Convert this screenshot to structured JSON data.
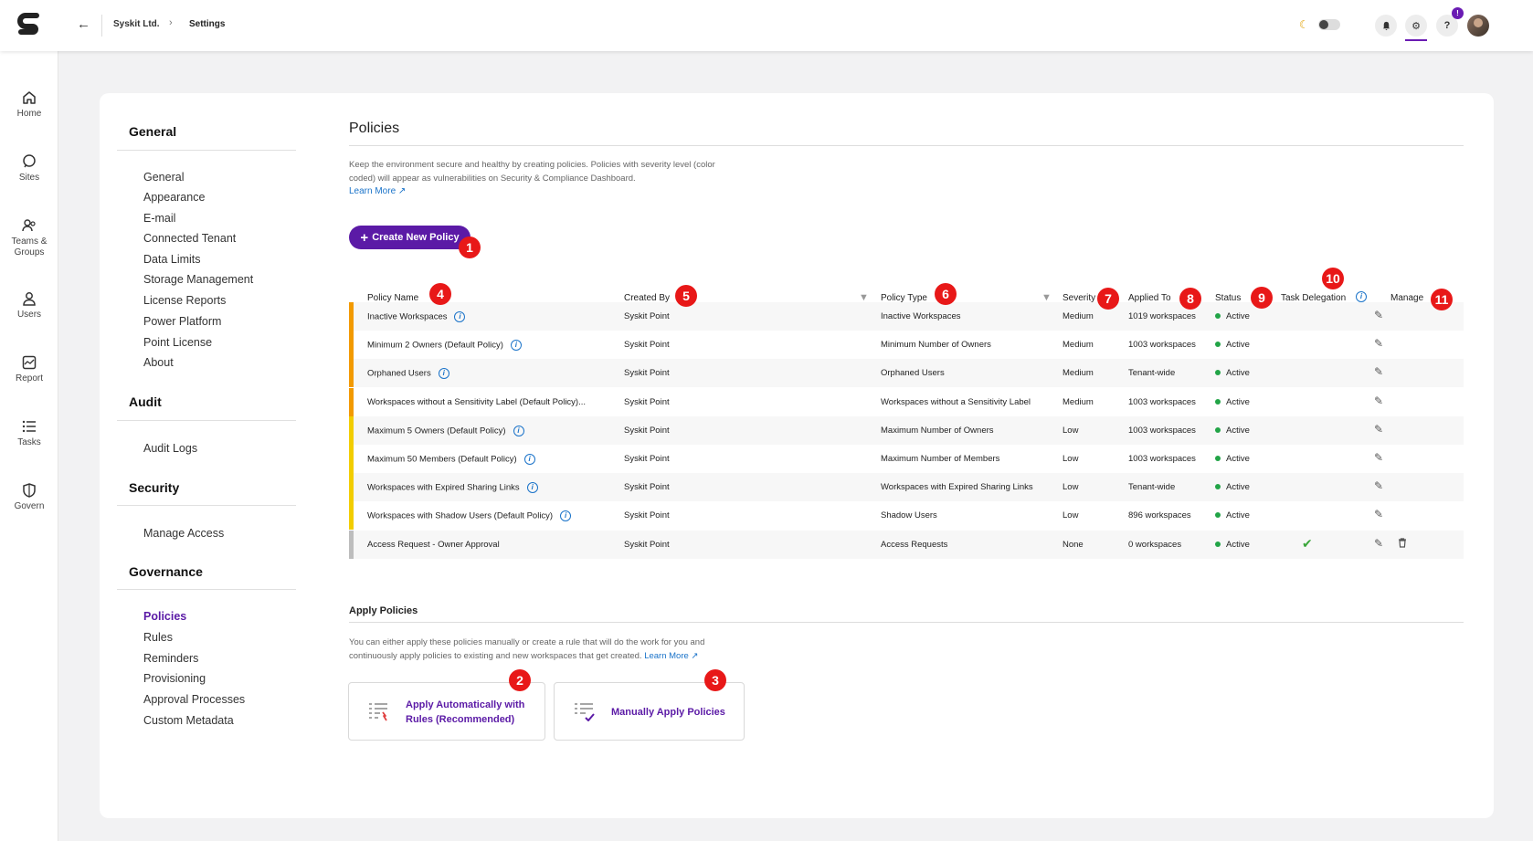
{
  "topbar": {
    "breadcrumb": [
      "Syskit Ltd.",
      "Settings"
    ],
    "notification_count": "!",
    "help_label": "?"
  },
  "rail": [
    {
      "label": "Home",
      "icon": "home-icon"
    },
    {
      "label": "Sites",
      "icon": "sites-icon"
    },
    {
      "label": "Teams & Groups",
      "icon": "teams-groups-icon"
    },
    {
      "label": "Users",
      "icon": "users-icon"
    },
    {
      "label": "Report",
      "icon": "report-icon"
    },
    {
      "label": "Tasks",
      "icon": "tasks-icon"
    },
    {
      "label": "Govern",
      "icon": "govern-icon"
    }
  ],
  "settings_nav": {
    "sections": [
      {
        "title": "General",
        "items": [
          "General",
          "Appearance",
          "E-mail",
          "Connected Tenant",
          "Data Limits",
          "Storage Management",
          "License Reports",
          "Power Platform",
          "Point License",
          "About"
        ]
      },
      {
        "title": "Audit",
        "items": [
          "Audit Logs"
        ]
      },
      {
        "title": "Security",
        "items": [
          "Manage Access"
        ]
      },
      {
        "title": "Governance",
        "items": [
          "Policies",
          "Rules",
          "Reminders",
          "Provisioning",
          "Approval Processes",
          "Custom Metadata"
        ]
      }
    ],
    "active_item": "Policies"
  },
  "policies": {
    "title": "Policies",
    "description": "Keep the environment secure and healthy by creating policies. Policies with severity level (color coded) will appear as vulnerabilities on Security & Compliance Dashboard.",
    "learn_more": "Learn More",
    "create_button": "Create New Policy",
    "columns": [
      "Policy Name",
      "Created By",
      "Policy Type",
      "Severity",
      "Applied To",
      "Status",
      "Task Delegation",
      "Manage"
    ],
    "severity_colors": {
      "Medium": "#f29a00",
      "Low": "#f2cd00",
      "None": "#bdbdbd"
    },
    "rows": [
      {
        "name": "Inactive Workspaces",
        "info": true,
        "created_by": "Syskit Point",
        "type": "Inactive Workspaces",
        "severity": "Medium",
        "applied_to": "1019 workspaces",
        "status": "Active",
        "delegation": false,
        "deletable": false
      },
      {
        "name": "Minimum 2 Owners (Default Policy)",
        "info": true,
        "created_by": "Syskit Point",
        "type": "Minimum Number of Owners",
        "severity": "Medium",
        "applied_to": "1003 workspaces",
        "status": "Active",
        "delegation": false,
        "deletable": false
      },
      {
        "name": "Orphaned Users",
        "info": true,
        "created_by": "Syskit Point",
        "type": "Orphaned Users",
        "severity": "Medium",
        "applied_to": "Tenant-wide",
        "status": "Active",
        "delegation": false,
        "deletable": false
      },
      {
        "name": "Workspaces without a Sensitivity Label (Default Policy)...",
        "info": false,
        "created_by": "Syskit Point",
        "type": "Workspaces without a Sensitivity Label",
        "severity": "Medium",
        "applied_to": "1003 workspaces",
        "status": "Active",
        "delegation": false,
        "deletable": false
      },
      {
        "name": "Maximum 5 Owners (Default Policy)",
        "info": true,
        "created_by": "Syskit Point",
        "type": "Maximum Number of Owners",
        "severity": "Low",
        "applied_to": "1003 workspaces",
        "status": "Active",
        "delegation": false,
        "deletable": false
      },
      {
        "name": "Maximum 50 Members (Default Policy)",
        "info": true,
        "created_by": "Syskit Point",
        "type": "Maximum Number of Members",
        "severity": "Low",
        "applied_to": "1003 workspaces",
        "status": "Active",
        "delegation": false,
        "deletable": false
      },
      {
        "name": "Workspaces with Expired Sharing Links",
        "info": true,
        "created_by": "Syskit Point",
        "type": "Workspaces with Expired Sharing Links",
        "severity": "Low",
        "applied_to": "Tenant-wide",
        "status": "Active",
        "delegation": false,
        "deletable": false
      },
      {
        "name": "Workspaces with Shadow Users (Default Policy)",
        "info": true,
        "created_by": "Syskit Point",
        "type": "Shadow Users",
        "severity": "Low",
        "applied_to": "896 workspaces",
        "status": "Active",
        "delegation": false,
        "deletable": false
      },
      {
        "name": "Access Request - Owner Approval",
        "info": false,
        "created_by": "Syskit Point",
        "type": "Access Requests",
        "severity": "None",
        "applied_to": "0 workspaces",
        "status": "Active",
        "delegation": true,
        "deletable": true
      }
    ]
  },
  "apply": {
    "title": "Apply Policies",
    "description": "You can either apply these policies manually or create a rule that will do the work for you and continuously apply policies to existing and new workspaces that get created.",
    "learn_more": "Learn More",
    "auto_label_1": "Apply Automatically with",
    "auto_label_2": "Rules (Recommended)",
    "manual_label": "Manually Apply Policies"
  },
  "callouts": [
    "1",
    "2",
    "3",
    "4",
    "5",
    "6",
    "7",
    "8",
    "9",
    "10",
    "11"
  ]
}
